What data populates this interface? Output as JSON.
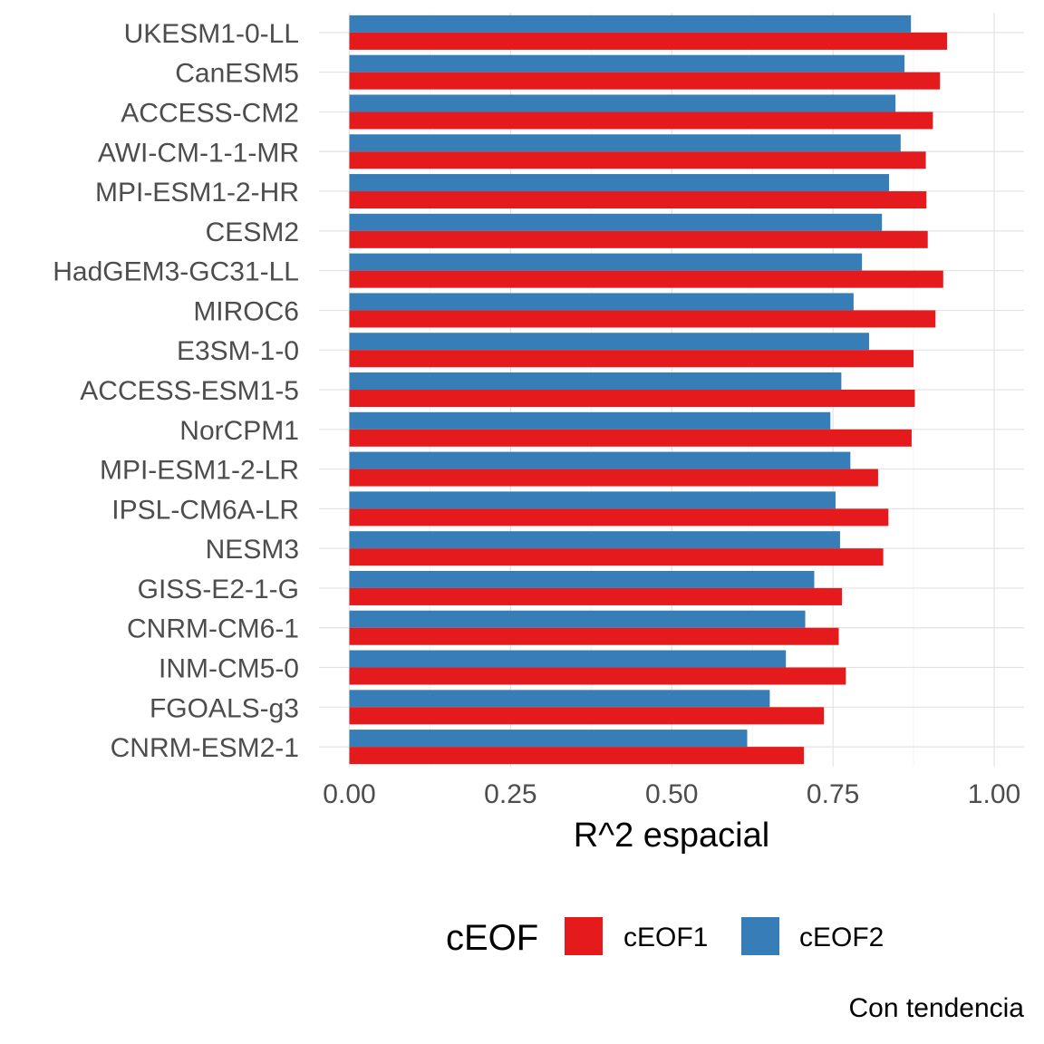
{
  "chart_data": {
    "type": "bar",
    "orientation": "horizontal",
    "categories": [
      "UKESM1-0-LL",
      "CanESM5",
      "ACCESS-CM2",
      "AWI-CM-1-1-MR",
      "MPI-ESM1-2-HR",
      "CESM2",
      "HadGEM3-GC31-LL",
      "MIROC6",
      "E3SM-1-0",
      "ACCESS-ESM1-5",
      "NorCPM1",
      "MPI-ESM1-2-LR",
      "IPSL-CM6A-LR",
      "NESM3",
      "GISS-E2-1-G",
      "CNRM-CM6-1",
      "INM-CM5-0",
      "FGOALS-g3",
      "CNRM-ESM2-1"
    ],
    "series": [
      {
        "name": "cEOF1",
        "color": "#e41a1c",
        "values": [
          0.927,
          0.916,
          0.905,
          0.894,
          0.895,
          0.897,
          0.921,
          0.909,
          0.875,
          0.877,
          0.872,
          0.82,
          0.836,
          0.828,
          0.764,
          0.759,
          0.77,
          0.736,
          0.705
        ]
      },
      {
        "name": "cEOF2",
        "color": "#377eb8",
        "values": [
          0.871,
          0.861,
          0.847,
          0.855,
          0.837,
          0.826,
          0.795,
          0.782,
          0.806,
          0.763,
          0.746,
          0.777,
          0.754,
          0.761,
          0.721,
          0.707,
          0.677,
          0.652,
          0.617
        ]
      }
    ],
    "xlabel": "R^2 espacial",
    "ylabel": "",
    "xlim": [
      -0.045,
      1.05
    ],
    "xticks": [
      "0.00",
      "0.25",
      "0.50",
      "0.75",
      "1.00"
    ],
    "xtick_values": [
      0,
      0.25,
      0.5,
      0.75,
      1.0
    ],
    "grid": true,
    "legend": {
      "title": "cEOF",
      "position": "bottom",
      "entries": [
        "cEOF1",
        "cEOF2"
      ]
    },
    "caption": "Con tendencia"
  }
}
